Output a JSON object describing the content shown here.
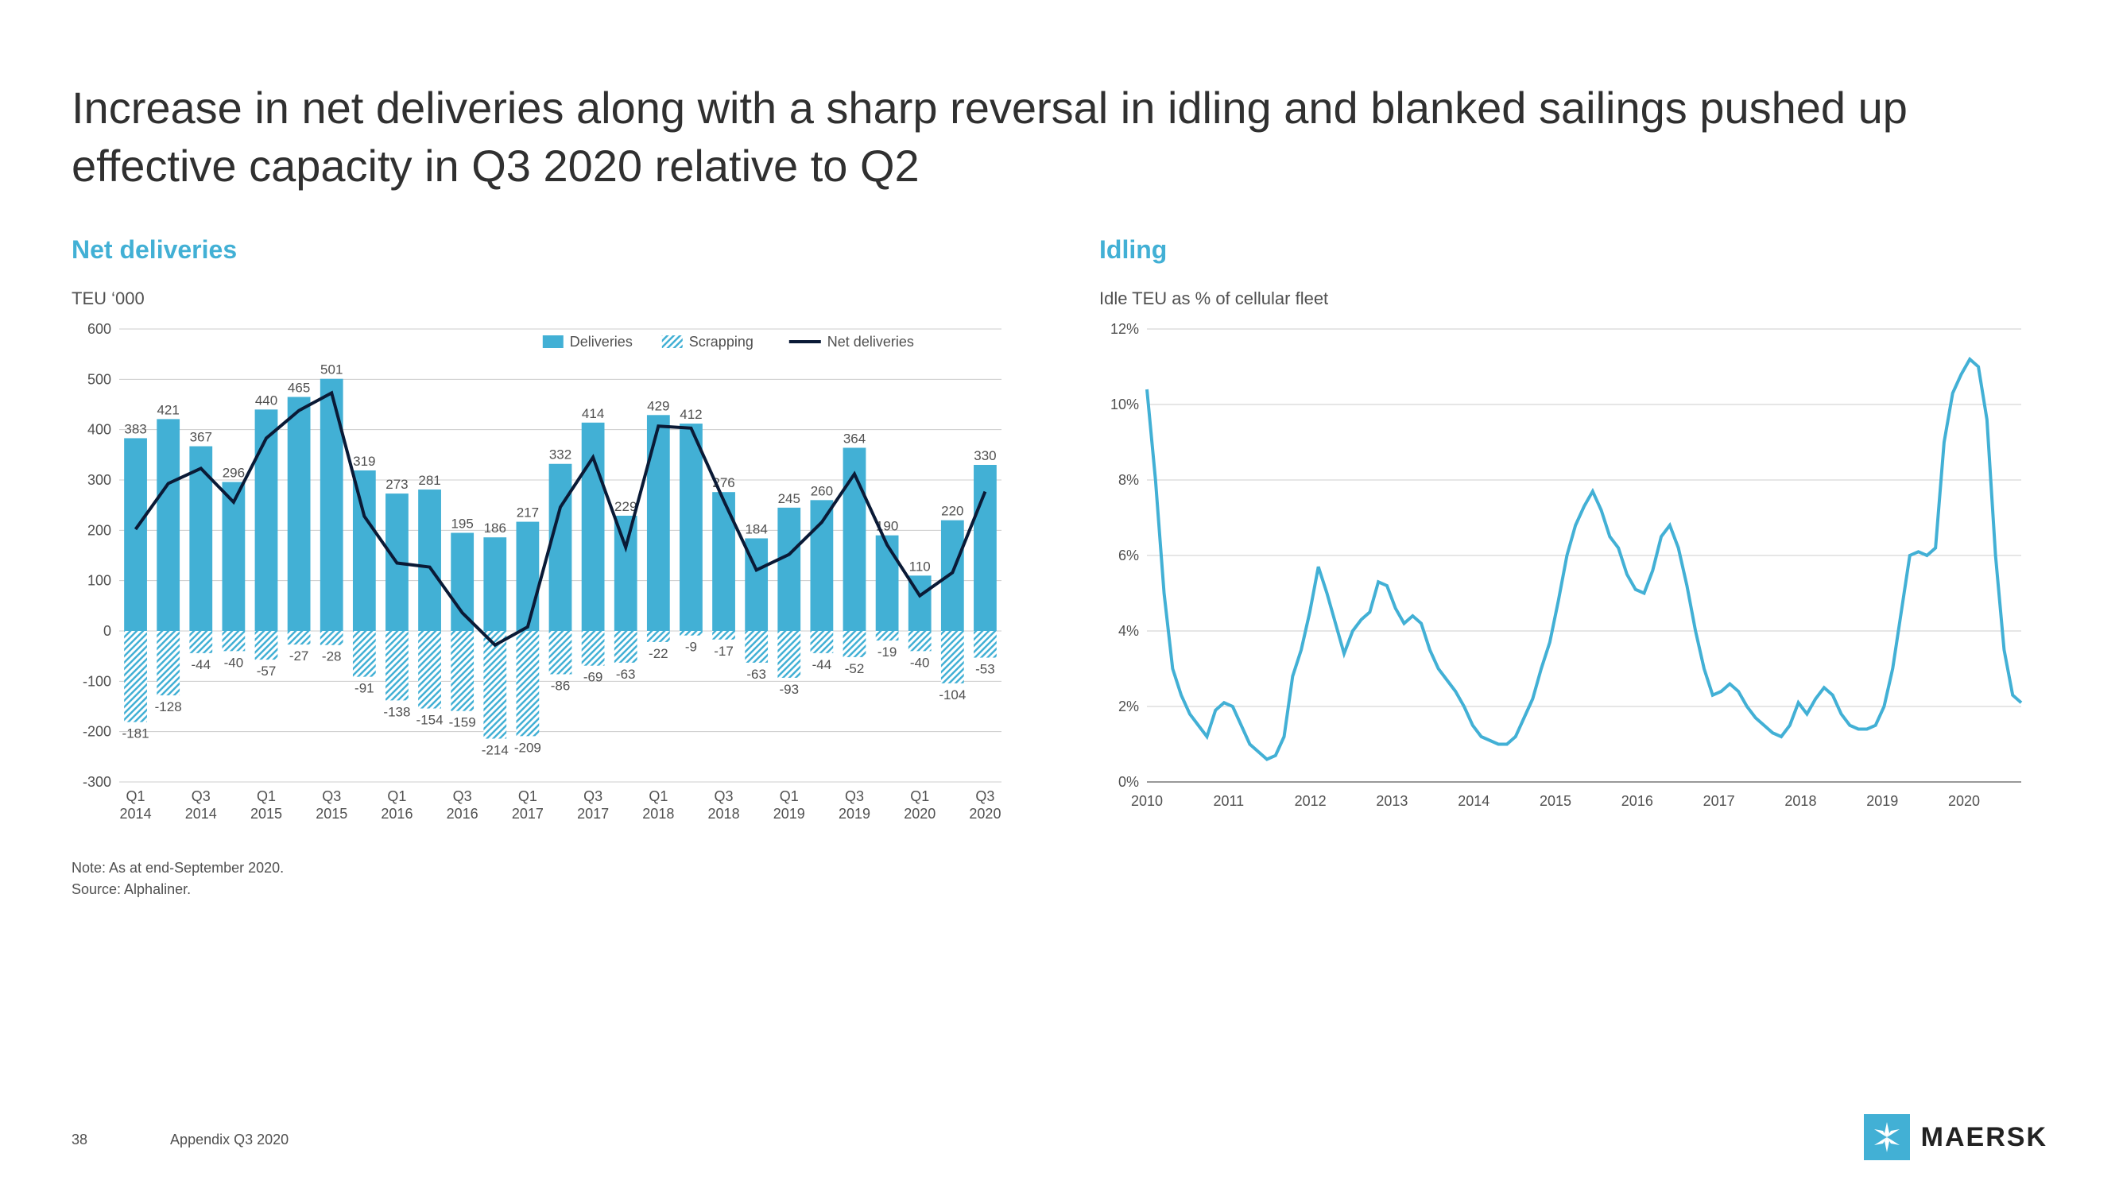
{
  "title": "Increase in net deliveries along with a sharp reversal in idling and blanked sailings pushed up effective capacity in Q3 2020 relative to Q2",
  "accent_color": "#42b0d5",
  "dark_line_color": "#0a1a36",
  "grid_color": "#cccccc",
  "text_color": "#505050",
  "title_color": "#303030",
  "net_deliveries": {
    "subtitle": "Net deliveries",
    "ylabel": "TEU ‘000",
    "ylim": [
      -300,
      600
    ],
    "ytick_step": 100,
    "legend": [
      "Deliveries",
      "Scrapping",
      "Net deliveries"
    ],
    "categories": [
      "Q1 2014",
      "",
      "Q3 2014",
      "",
      "Q1 2015",
      "",
      "Q3 2015",
      "",
      "Q1 2016",
      "",
      "Q3 2016",
      "",
      "Q1 2017",
      "",
      "Q3 2017",
      "",
      "Q1 2018",
      "",
      "Q3 2018",
      "",
      "Q1 2019",
      "",
      "Q3 2019",
      "",
      "Q1 2020",
      "",
      "Q3 2020"
    ],
    "xaxis_labels": [
      "Q1\n2014",
      "Q3\n2014",
      "Q1\n2015",
      "Q3\n2015",
      "Q1\n2016",
      "Q3\n2016",
      "Q1\n2017",
      "Q3\n2017",
      "Q1\n2018",
      "Q3\n2018",
      "Q1\n2019",
      "Q3\n2019",
      "Q1\n2020",
      "Q3\n2020"
    ],
    "deliveries": [
      383,
      421,
      367,
      296,
      440,
      465,
      501,
      319,
      273,
      281,
      195,
      186,
      217,
      332,
      414,
      229,
      429,
      412,
      276,
      184,
      245,
      260,
      364,
      190,
      110,
      220,
      330
    ],
    "scrapping": [
      -181,
      -128,
      -44,
      -40,
      -57,
      -27,
      -28,
      -91,
      -138,
      -154,
      -159,
      -214,
      -209,
      -86,
      -69,
      -63,
      -22,
      -9,
      -17,
      -63,
      -93,
      -44,
      -52,
      -19,
      -40,
      -104,
      -53
    ],
    "net": [
      202,
      293,
      323,
      256,
      383,
      438,
      473,
      228,
      135,
      127,
      36,
      -28,
      8,
      246,
      345,
      166,
      407,
      403,
      259,
      121,
      152,
      216,
      312,
      171,
      70,
      116,
      277
    ]
  },
  "idling": {
    "subtitle": "Idling",
    "ylabel": "Idle TEU as % of cellular fleet",
    "ylim": [
      0,
      12
    ],
    "ytick_step": 2,
    "xaxis_labels": [
      "2010",
      "2011",
      "2012",
      "2013",
      "2014",
      "2015",
      "2016",
      "2017",
      "2018",
      "2019",
      "2020"
    ],
    "series": [
      10.4,
      8.0,
      5.0,
      3.0,
      2.3,
      1.8,
      1.5,
      1.2,
      1.9,
      2.1,
      2.0,
      1.5,
      1.0,
      0.8,
      0.6,
      0.7,
      1.2,
      2.8,
      3.5,
      4.5,
      5.7,
      5.0,
      4.2,
      3.4,
      4.0,
      4.3,
      4.5,
      5.3,
      5.2,
      4.6,
      4.2,
      4.4,
      4.2,
      3.5,
      3.0,
      2.7,
      2.4,
      2.0,
      1.5,
      1.2,
      1.1,
      1.0,
      1.0,
      1.2,
      1.7,
      2.2,
      3.0,
      3.7,
      4.8,
      6.0,
      6.8,
      7.3,
      7.7,
      7.2,
      6.5,
      6.2,
      5.5,
      5.1,
      5.0,
      5.6,
      6.5,
      6.8,
      6.2,
      5.2,
      4.0,
      3.0,
      2.3,
      2.4,
      2.6,
      2.4,
      2.0,
      1.7,
      1.5,
      1.3,
      1.2,
      1.5,
      2.1,
      1.8,
      2.2,
      2.5,
      2.3,
      1.8,
      1.5,
      1.4,
      1.4,
      1.5,
      2.0,
      3.0,
      4.5,
      6.0,
      6.1,
      6.0,
      6.2,
      9.0,
      10.3,
      10.8,
      11.2,
      11.0,
      9.6,
      6.0,
      3.5,
      2.3,
      2.1
    ]
  },
  "note_line1": "Note: As at end-September 2020.",
  "note_line2": "Source: Alphaliner.",
  "page_number": "38",
  "appendix": "Appendix Q3 2020",
  "brand": "MAERSK"
}
